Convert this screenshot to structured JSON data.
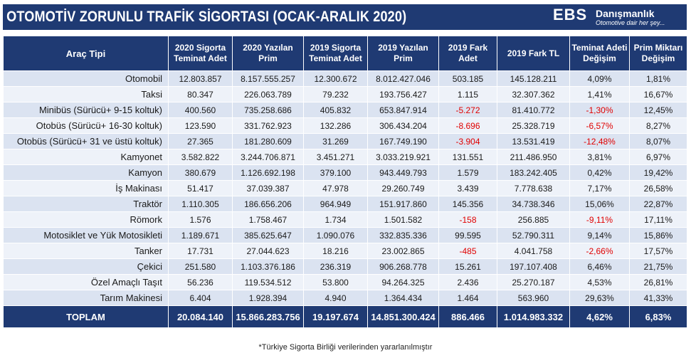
{
  "header": {
    "title": "OTOMOTİV ZORUNLU TRAFİK SİGORTASI  (OCAK-ARALIK 2020)",
    "logo_name": "EBS",
    "logo_brand": "Danışmanlık",
    "logo_tagline": "Otomotive dair her şey..."
  },
  "table": {
    "columns": [
      "Araç Tipi",
      "2020 Sigorta Teminat Adet",
      "2020 Yazılan Prim",
      "2019 Sigorta Teminat Adet",
      "2019 Yazılan Prim",
      "2019 Fark Adet",
      "2019 Fark TL",
      "Teminat Adeti Değişim",
      "Prim Miktarı Değişim"
    ],
    "rows": [
      {
        "type": "Otomobil",
        "adet2020": "12.803.857",
        "prim2020": "8.157.555.257",
        "adet2019": "12.300.672",
        "prim2019": "8.012.427.046",
        "fark_adet": "503.185",
        "fark_tl": "145.128.211",
        "teminat_degisim": "4,09%",
        "prim_degisim": "1,81%"
      },
      {
        "type": "Taksi",
        "adet2020": "80.347",
        "prim2020": "226.063.789",
        "adet2019": "79.232",
        "prim2019": "193.756.427",
        "fark_adet": "1.115",
        "fark_tl": "32.307.362",
        "teminat_degisim": "1,41%",
        "prim_degisim": "16,67%"
      },
      {
        "type": "Minibüs (Sürücü+ 9-15 koltuk)",
        "adet2020": "400.560",
        "prim2020": "735.258.686",
        "adet2019": "405.832",
        "prim2019": "653.847.914",
        "fark_adet": "-5.272",
        "fark_tl": "81.410.772",
        "teminat_degisim": "-1,30%",
        "prim_degisim": "12,45%"
      },
      {
        "type": "Otobüs (Sürücü+ 16-30 koltuk)",
        "adet2020": "123.590",
        "prim2020": "331.762.923",
        "adet2019": "132.286",
        "prim2019": "306.434.204",
        "fark_adet": "-8.696",
        "fark_tl": "25.328.719",
        "teminat_degisim": "-6,57%",
        "prim_degisim": "8,27%"
      },
      {
        "type": "Otobüs (Sürücü+ 31 ve üstü koltuk)",
        "adet2020": "27.365",
        "prim2020": "181.280.609",
        "adet2019": "31.269",
        "prim2019": "167.749.190",
        "fark_adet": "-3.904",
        "fark_tl": "13.531.419",
        "teminat_degisim": "-12,48%",
        "prim_degisim": "8,07%"
      },
      {
        "type": "Kamyonet",
        "adet2020": "3.582.822",
        "prim2020": "3.244.706.871",
        "adet2019": "3.451.271",
        "prim2019": "3.033.219.921",
        "fark_adet": "131.551",
        "fark_tl": "211.486.950",
        "teminat_degisim": "3,81%",
        "prim_degisim": "6,97%"
      },
      {
        "type": "Kamyon",
        "adet2020": "380.679",
        "prim2020": "1.126.692.198",
        "adet2019": "379.100",
        "prim2019": "943.449.793",
        "fark_adet": "1.579",
        "fark_tl": "183.242.405",
        "teminat_degisim": "0,42%",
        "prim_degisim": "19,42%"
      },
      {
        "type": "İş Makinası",
        "adet2020": "51.417",
        "prim2020": "37.039.387",
        "adet2019": "47.978",
        "prim2019": "29.260.749",
        "fark_adet": "3.439",
        "fark_tl": "7.778.638",
        "teminat_degisim": "7,17%",
        "prim_degisim": "26,58%"
      },
      {
        "type": "Traktör",
        "adet2020": "1.110.305",
        "prim2020": "186.656.206",
        "adet2019": "964.949",
        "prim2019": "151.917.860",
        "fark_adet": "145.356",
        "fark_tl": "34.738.346",
        "teminat_degisim": "15,06%",
        "prim_degisim": "22,87%"
      },
      {
        "type": "Römork",
        "adet2020": "1.576",
        "prim2020": "1.758.467",
        "adet2019": "1.734",
        "prim2019": "1.501.582",
        "fark_adet": "-158",
        "fark_tl": "256.885",
        "teminat_degisim": "-9,11%",
        "prim_degisim": "17,11%"
      },
      {
        "type": "Motosiklet ve Yük Motosikleti",
        "adet2020": "1.189.671",
        "prim2020": "385.625.647",
        "adet2019": "1.090.076",
        "prim2019": "332.835.336",
        "fark_adet": "99.595",
        "fark_tl": "52.790.311",
        "teminat_degisim": "9,14%",
        "prim_degisim": "15,86%"
      },
      {
        "type": "Tanker",
        "adet2020": "17.731",
        "prim2020": "27.044.623",
        "adet2019": "18.216",
        "prim2019": "23.002.865",
        "fark_adet": "-485",
        "fark_tl": "4.041.758",
        "teminat_degisim": "-2,66%",
        "prim_degisim": "17,57%"
      },
      {
        "type": "Çekici",
        "adet2020": "251.580",
        "prim2020": "1.103.376.186",
        "adet2019": "236.319",
        "prim2019": "906.268.778",
        "fark_adet": "15.261",
        "fark_tl": "197.107.408",
        "teminat_degisim": "6,46%",
        "prim_degisim": "21,75%"
      },
      {
        "type": "Özel Amaçlı Taşıt",
        "adet2020": "56.236",
        "prim2020": "119.534.512",
        "adet2019": "53.800",
        "prim2019": "94.264.325",
        "fark_adet": "2.436",
        "fark_tl": "25.270.187",
        "teminat_degisim": "4,53%",
        "prim_degisim": "26,81%"
      },
      {
        "type": "Tarım Makinesi",
        "adet2020": "6.404",
        "prim2020": "1.928.394",
        "adet2019": "4.940",
        "prim2019": "1.364.434",
        "fark_adet": "1.464",
        "fark_tl": "563.960",
        "teminat_degisim": "29,63%",
        "prim_degisim": "41,33%"
      }
    ],
    "total": {
      "type": "TOPLAM",
      "adet2020": "20.084.140",
      "prim2020": "15.866.283.756",
      "adet2019": "19.197.674",
      "prim2019": "14.851.300.424",
      "fark_adet": "886.466",
      "fark_tl": "1.014.983.332",
      "teminat_degisim": "4,62%",
      "prim_degisim": "6,83%"
    }
  },
  "colors": {
    "header_bg": "#1f3a73",
    "row_odd": "#dbe3f1",
    "row_even": "#eef2f9",
    "negative": "#e00000"
  },
  "footnote": "*Türkiye Sigorta Birliği verilerinden yararlanılmıştır"
}
